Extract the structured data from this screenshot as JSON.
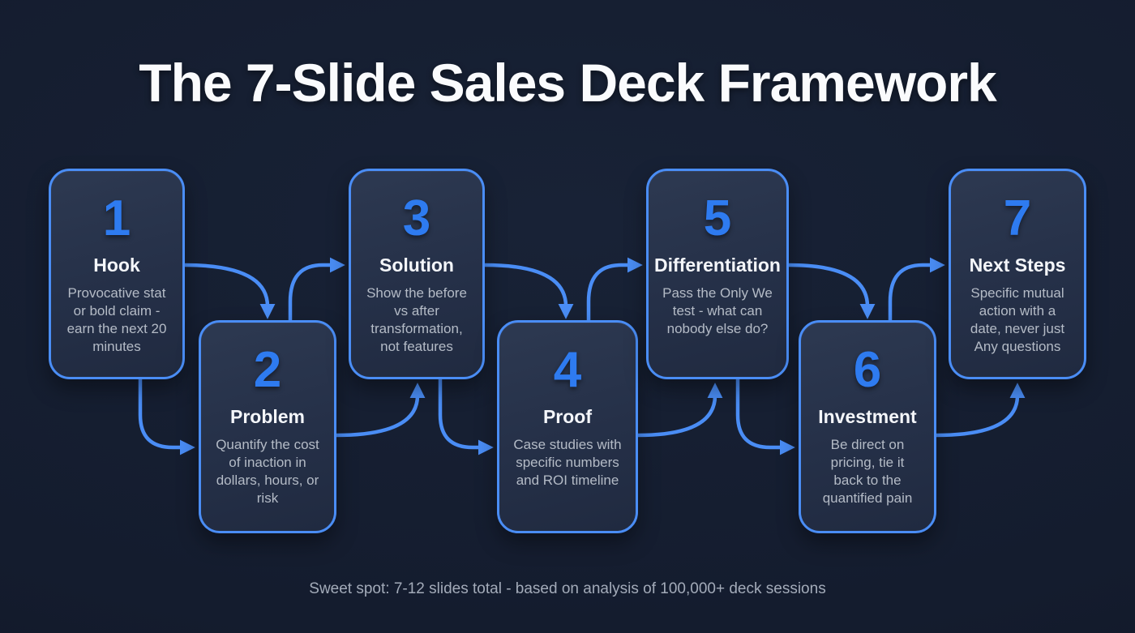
{
  "title": "The 7-Slide Sales Deck Framework",
  "footer": "Sweet spot: 7-12 slides total - based on analysis of 100,000+ deck sessions",
  "colors": {
    "background": "#141c2e",
    "accent": "#4a8df5",
    "number_blue": "#2e7bf0",
    "card_fill": "#253048",
    "title_text": "#fafbfd",
    "description_text": "#b4bbc6",
    "footer_text": "#a3abb9"
  },
  "cards": [
    {
      "number": "1",
      "title": "Hook",
      "description": "Provocative stat or bold claim - earn the next 20 minutes"
    },
    {
      "number": "2",
      "title": "Problem",
      "description": "Quantify the cost of inaction in dollars, hours, or risk"
    },
    {
      "number": "3",
      "title": "Solution",
      "description": "Show the before vs after transformation, not features"
    },
    {
      "number": "4",
      "title": "Proof",
      "description": "Case studies with specific numbers and ROI timeline"
    },
    {
      "number": "5",
      "title": "Differentiation",
      "description": "Pass the Only We test - what can nobody else do?"
    },
    {
      "number": "6",
      "title": "Investment",
      "description": "Be direct on pricing, tie it back to the quantified pain"
    },
    {
      "number": "7",
      "title": "Next Steps",
      "description": "Specific mutual action with a date, never just Any questions"
    }
  ],
  "flow": [
    [
      "1",
      "2"
    ],
    [
      "2",
      "3"
    ],
    [
      "3",
      "4"
    ],
    [
      "4",
      "5"
    ],
    [
      "5",
      "6"
    ],
    [
      "6",
      "7"
    ]
  ]
}
